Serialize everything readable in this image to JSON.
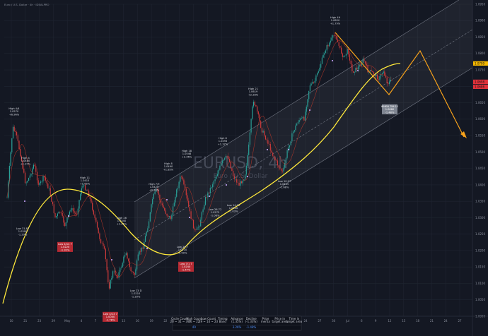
{
  "header": {
    "text": "Euro / U.S. Dollar · 4h · IDEALPRO"
  },
  "watermark": {
    "symbol": "EURUSD, 4h",
    "name": "Euro / U.S. Dollar"
  },
  "colors": {
    "background": "#141823",
    "cycle": "#ffe93b",
    "projection": "#f7a21b",
    "channel": "#9aa0ad",
    "candle_up": "#2aa198",
    "candle_down": "#d03a3a",
    "label_red": "#b52a33"
  },
  "chart_data": {
    "type": "candlestick",
    "symbol": "EURUSD",
    "timeframe": "4h",
    "x_ticks": [
      "10",
      "21",
      "23",
      "29",
      "May",
      "4",
      "7",
      "10",
      "13",
      "16",
      "19",
      "22",
      "25",
      "28",
      "Jun",
      "6",
      "9",
      "12",
      "15",
      "18",
      "21",
      "24",
      "27",
      "30",
      "Jul",
      "6",
      "9",
      "12",
      "15",
      "18",
      "21",
      "24",
      "27"
    ],
    "y_ticks": [
      "1.0950",
      "1.0900",
      "1.0850",
      "1.0800",
      "1.0750",
      "1.0700",
      "1.0650",
      "1.0600",
      "1.0550",
      "1.0500",
      "1.0450",
      "1.0400",
      "1.0350",
      "1.0300",
      "1.0250",
      "1.0200",
      "1.0150",
      "1.0100",
      "1.0050",
      "1.0000"
    ],
    "price_tags": [
      {
        "value": "1.0799",
        "color": "#f5b800"
      },
      {
        "value": "1.0698",
        "color": "#e0313a"
      },
      {
        "value": "1.0686",
        "color": "#e0313a"
      }
    ],
    "annotations": [
      {
        "lines": [
          "High 4/4",
          "1.0570",
          "+6.96%"
        ],
        "style": "plain"
      },
      {
        "lines": [
          "High 4",
          "1.0480",
          "+1.37%"
        ],
        "style": "plain"
      },
      {
        "lines": [
          "Low 31.87",
          "1.0300",
          "-1.29%"
        ],
        "style": "plain"
      },
      {
        "lines": [
          "Low 4/14 7",
          "1.0220",
          "-1.32%"
        ],
        "style": "red"
      },
      {
        "lines": [
          "High 11",
          "1.0415",
          "+1.05%"
        ],
        "style": "plain"
      },
      {
        "lines": [
          "High 26",
          "1.0340",
          "+1.41%"
        ],
        "style": "plain"
      },
      {
        "lines": [
          "Low 4/13 7",
          "1.0000",
          "-1.78%"
        ],
        "style": "red"
      },
      {
        "lines": [
          "Low 23 D",
          "1.0210",
          "-1.20%"
        ],
        "style": "plain"
      },
      {
        "lines": [
          "High 7/9",
          "1.0429",
          "+0.38%"
        ],
        "style": "plain"
      },
      {
        "lines": [
          "High 8",
          "1.0490",
          "+1.85%"
        ],
        "style": "plain"
      },
      {
        "lines": [
          "Low 29.7",
          "1.0210",
          "-0.99%"
        ],
        "style": "plain"
      },
      {
        "lines": [
          "Low 7/1 7",
          "1.0240",
          "-1.47%"
        ],
        "style": "red"
      },
      {
        "lines": [
          "High 18",
          "1.0546",
          "+2.46%"
        ],
        "style": "plain"
      },
      {
        "lines": [
          "High 8",
          "1.0493",
          "+1.37%"
        ],
        "style": "plain"
      },
      {
        "lines": [
          "Low 26.72",
          "1.0275",
          "-1.08%"
        ],
        "style": "plain"
      },
      {
        "lines": [
          "Low 14.22",
          "1.0326",
          "-1.03%"
        ],
        "style": "plain"
      },
      {
        "lines": [
          "High 21",
          "1.0619",
          "+2.28%"
        ],
        "style": "plain"
      },
      {
        "lines": [
          "Low 10.27",
          "1.0445",
          "-1.68%"
        ],
        "style": "plain"
      },
      {
        "lines": [
          "High 49",
          "1.0820",
          "+1.79%"
        ],
        "style": "plain"
      },
      {
        "lines": [
          "WHEN TIM 11",
          "1.0680",
          "-1.48%"
        ],
        "style": "grey"
      }
    ],
    "table": {
      "headers": [
        [
          "Cycle Count",
          "26 ~ 31 ~ 39"
        ],
        [
          "High Count",
          "16 ~ 22"
        ],
        [
          "Low Count",
          "19 ~ 14 ~ 23"
        ],
        [
          "Timing",
          "Band"
        ],
        [
          "Advance",
          "(1.35%)"
        ],
        [
          "Decline",
          "(-1.33%)"
        ],
        [
          "Price",
          "inertia"
        ],
        [
          "Price in",
          "target area"
        ],
        [
          "Time in",
          "target area"
        ]
      ],
      "values": [
        "",
        "49",
        "",
        "",
        "3.26%",
        "-1.48%",
        "",
        "",
        ""
      ]
    }
  }
}
